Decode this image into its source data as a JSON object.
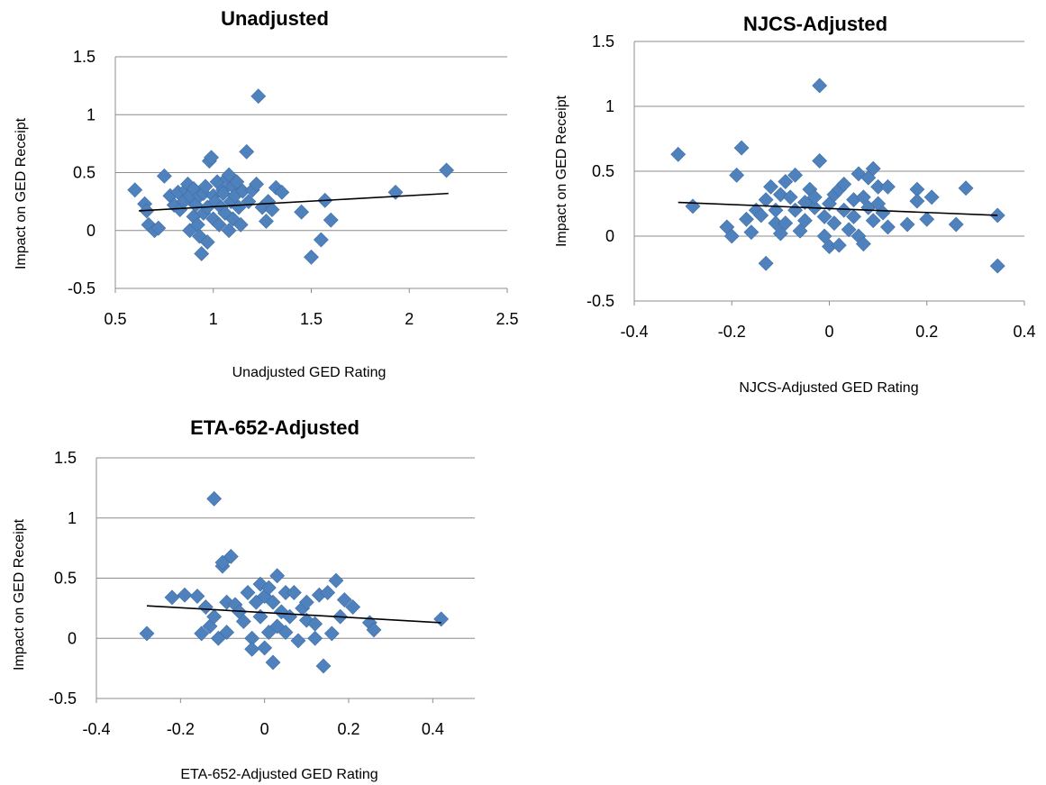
{
  "chart_data": [
    {
      "type": "scatter",
      "title": "Unadjusted",
      "xlabel": "Unadjusted GED Rating",
      "ylabel": "Impact on GED Receipt",
      "xlim": [
        0.5,
        2.5
      ],
      "ylim": [
        -0.5,
        1.5
      ],
      "xticks": [
        "0.5",
        "1",
        "1.5",
        "2",
        "2.5"
      ],
      "yticks": [
        "-0.5",
        "0",
        "0.5",
        "1",
        "1.5"
      ],
      "grid": "horizontal",
      "trendline": [
        [
          0.62,
          0.17
        ],
        [
          2.2,
          0.32
        ]
      ],
      "points": [
        [
          0.6,
          0.35
        ],
        [
          0.65,
          0.23
        ],
        [
          0.66,
          0.17
        ],
        [
          0.67,
          0.05
        ],
        [
          0.7,
          0.0
        ],
        [
          0.72,
          0.02
        ],
        [
          0.75,
          0.47
        ],
        [
          0.78,
          0.3
        ],
        [
          0.8,
          0.22
        ],
        [
          0.82,
          0.33
        ],
        [
          0.83,
          0.18
        ],
        [
          0.85,
          0.25
        ],
        [
          0.86,
          0.35
        ],
        [
          0.87,
          0.4
        ],
        [
          0.88,
          0.3
        ],
        [
          0.88,
          0.0
        ],
        [
          0.9,
          0.12
        ],
        [
          0.9,
          0.36
        ],
        [
          0.91,
          0.22
        ],
        [
          0.92,
          0.05
        ],
        [
          0.93,
          0.3
        ],
        [
          0.93,
          -0.05
        ],
        [
          0.94,
          -0.2
        ],
        [
          0.95,
          0.15
        ],
        [
          0.95,
          0.32
        ],
        [
          0.96,
          0.38
        ],
        [
          0.97,
          0.2
        ],
        [
          0.97,
          -0.1
        ],
        [
          0.98,
          0.6
        ],
        [
          0.99,
          0.63
        ],
        [
          1.0,
          0.3
        ],
        [
          1.0,
          0.1
        ],
        [
          1.01,
          0.25
        ],
        [
          1.02,
          0.42
        ],
        [
          1.03,
          0.05
        ],
        [
          1.04,
          0.2
        ],
        [
          1.05,
          0.35
        ],
        [
          1.05,
          0.32
        ],
        [
          1.06,
          0.15
        ],
        [
          1.07,
          0.45
        ],
        [
          1.08,
          0.48
        ],
        [
          1.08,
          0.0
        ],
        [
          1.09,
          0.25
        ],
        [
          1.1,
          0.38
        ],
        [
          1.1,
          0.1
        ],
        [
          1.11,
          0.3
        ],
        [
          1.12,
          0.42
        ],
        [
          1.13,
          0.2
        ],
        [
          1.14,
          0.05
        ],
        [
          1.15,
          0.34
        ],
        [
          1.17,
          0.68
        ],
        [
          1.18,
          0.25
        ],
        [
          1.2,
          0.35
        ],
        [
          1.22,
          0.4
        ],
        [
          1.23,
          1.16
        ],
        [
          1.25,
          0.2
        ],
        [
          1.27,
          0.08
        ],
        [
          1.28,
          0.25
        ],
        [
          1.3,
          0.18
        ],
        [
          1.32,
          0.37
        ],
        [
          1.35,
          0.33
        ],
        [
          1.45,
          0.16
        ],
        [
          1.5,
          -0.23
        ],
        [
          1.55,
          -0.08
        ],
        [
          1.57,
          0.26
        ],
        [
          1.6,
          0.09
        ],
        [
          1.93,
          0.33
        ],
        [
          2.19,
          0.52
        ]
      ]
    },
    {
      "type": "scatter",
      "title": "NJCS-Adjusted",
      "xlabel": "NJCS-Adjusted GED Rating",
      "ylabel": "Impact on GED Receipt",
      "xlim": [
        -0.4,
        0.4
      ],
      "ylim": [
        -0.5,
        1.5
      ],
      "xticks": [
        "-0.4",
        "-0.2",
        "0",
        "0.2",
        "0.4"
      ],
      "yticks": [
        "-0.5",
        "0",
        "0.5",
        "1",
        "1.5"
      ],
      "grid": "horizontal",
      "trendline": [
        [
          -0.31,
          0.26
        ],
        [
          0.345,
          0.16
        ]
      ],
      "points": [
        [
          -0.31,
          0.63
        ],
        [
          -0.28,
          0.23
        ],
        [
          -0.21,
          0.07
        ],
        [
          -0.2,
          0.0
        ],
        [
          -0.19,
          0.47
        ],
        [
          -0.18,
          0.68
        ],
        [
          -0.17,
          0.13
        ],
        [
          -0.16,
          0.03
        ],
        [
          -0.15,
          0.2
        ],
        [
          -0.14,
          0.16
        ],
        [
          -0.13,
          -0.21
        ],
        [
          -0.13,
          0.28
        ],
        [
          -0.12,
          0.38
        ],
        [
          -0.11,
          0.1
        ],
        [
          -0.11,
          0.2
        ],
        [
          -0.1,
          0.32
        ],
        [
          -0.1,
          0.02
        ],
        [
          -0.09,
          0.42
        ],
        [
          -0.09,
          0.1
        ],
        [
          -0.08,
          0.3
        ],
        [
          -0.07,
          0.47
        ],
        [
          -0.07,
          0.2
        ],
        [
          -0.06,
          0.04
        ],
        [
          -0.05,
          0.26
        ],
        [
          -0.05,
          0.12
        ],
        [
          -0.04,
          0.36
        ],
        [
          -0.03,
          0.22
        ],
        [
          -0.03,
          0.3
        ],
        [
          -0.02,
          0.58
        ],
        [
          -0.02,
          1.16
        ],
        [
          -0.01,
          0.15
        ],
        [
          -0.01,
          0.0
        ],
        [
          0.0,
          0.25
        ],
        [
          0.0,
          -0.08
        ],
        [
          0.01,
          0.32
        ],
        [
          0.01,
          0.1
        ],
        [
          0.02,
          0.36
        ],
        [
          0.02,
          -0.07
        ],
        [
          0.03,
          0.2
        ],
        [
          0.03,
          0.4
        ],
        [
          0.04,
          0.05
        ],
        [
          0.05,
          0.28
        ],
        [
          0.05,
          0.15
        ],
        [
          0.06,
          0.48
        ],
        [
          0.06,
          0.0
        ],
        [
          0.07,
          0.3
        ],
        [
          0.07,
          -0.06
        ],
        [
          0.08,
          0.22
        ],
        [
          0.08,
          0.45
        ],
        [
          0.09,
          0.52
        ],
        [
          0.09,
          0.12
        ],
        [
          0.1,
          0.38
        ],
        [
          0.1,
          0.25
        ],
        [
          0.11,
          0.18
        ],
        [
          0.12,
          0.07
        ],
        [
          0.12,
          0.38
        ],
        [
          0.16,
          0.09
        ],
        [
          0.18,
          0.36
        ],
        [
          0.18,
          0.27
        ],
        [
          0.2,
          0.13
        ],
        [
          0.21,
          0.3
        ],
        [
          0.26,
          0.09
        ],
        [
          0.28,
          0.37
        ],
        [
          0.345,
          0.16
        ],
        [
          0.345,
          -0.23
        ]
      ]
    },
    {
      "type": "scatter",
      "title": "ETA-652-Adjusted",
      "xlabel": "ETA-652-Adjusted GED Rating",
      "ylabel": "Impact on GED Receipt",
      "xlim": [
        -0.4,
        0.5
      ],
      "ylim": [
        -0.5,
        1.5
      ],
      "xticks": [
        "-0.4",
        "-0.2",
        "0",
        "0.2",
        "0.4"
      ],
      "yticks": [
        "-0.5",
        "0",
        "0.5",
        "1",
        "1.5"
      ],
      "grid": "horizontal",
      "trendline": [
        [
          -0.28,
          0.27
        ],
        [
          0.42,
          0.13
        ]
      ],
      "points": [
        [
          -0.28,
          0.04
        ],
        [
          -0.22,
          0.34
        ],
        [
          -0.19,
          0.36
        ],
        [
          -0.16,
          0.35
        ],
        [
          -0.15,
          0.04
        ],
        [
          -0.14,
          0.26
        ],
        [
          -0.13,
          0.1
        ],
        [
          -0.12,
          0.18
        ],
        [
          -0.12,
          1.16
        ],
        [
          -0.11,
          0.0
        ],
        [
          -0.1,
          0.6
        ],
        [
          -0.1,
          0.63
        ],
        [
          -0.09,
          0.05
        ],
        [
          -0.09,
          0.3
        ],
        [
          -0.08,
          0.68
        ],
        [
          -0.07,
          0.28
        ],
        [
          -0.06,
          0.22
        ],
        [
          -0.05,
          0.14
        ],
        [
          -0.04,
          0.38
        ],
        [
          -0.03,
          0.0
        ],
        [
          -0.03,
          -0.09
        ],
        [
          -0.02,
          0.3
        ],
        [
          -0.01,
          0.45
        ],
        [
          -0.01,
          0.18
        ],
        [
          0.0,
          0.35
        ],
        [
          0.0,
          -0.08
        ],
        [
          0.01,
          0.42
        ],
        [
          0.01,
          0.05
        ],
        [
          0.02,
          -0.2
        ],
        [
          0.02,
          0.3
        ],
        [
          0.03,
          0.52
        ],
        [
          0.03,
          0.1
        ],
        [
          0.04,
          0.22
        ],
        [
          0.05,
          0.38
        ],
        [
          0.05,
          0.05
        ],
        [
          0.06,
          0.18
        ],
        [
          0.07,
          0.38
        ],
        [
          0.08,
          -0.02
        ],
        [
          0.09,
          0.25
        ],
        [
          0.1,
          0.3
        ],
        [
          0.1,
          0.15
        ],
        [
          0.12,
          0.12
        ],
        [
          0.12,
          0.0
        ],
        [
          0.13,
          0.36
        ],
        [
          0.14,
          -0.23
        ],
        [
          0.15,
          0.38
        ],
        [
          0.16,
          0.04
        ],
        [
          0.17,
          0.48
        ],
        [
          0.18,
          0.18
        ],
        [
          0.19,
          0.32
        ],
        [
          0.21,
          0.26
        ],
        [
          0.25,
          0.13
        ],
        [
          0.26,
          0.07
        ],
        [
          0.42,
          0.16
        ]
      ]
    }
  ]
}
